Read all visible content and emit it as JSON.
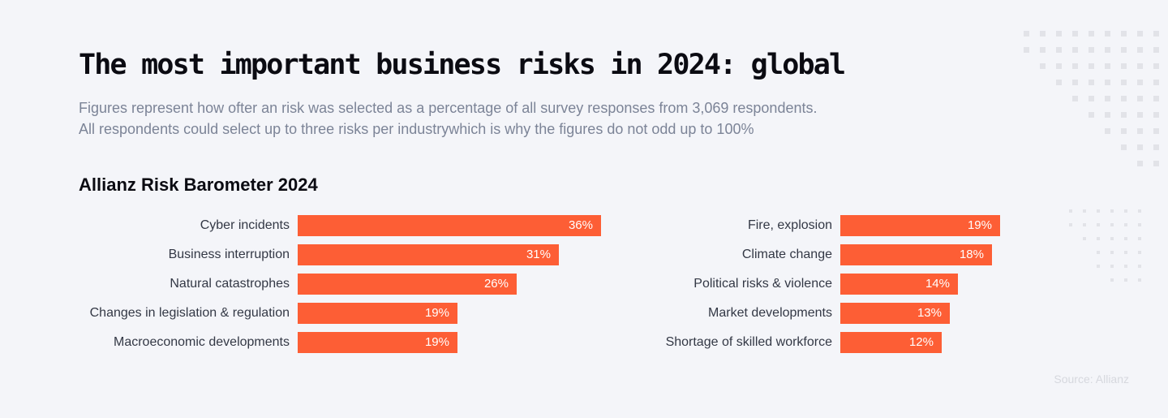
{
  "title": "The most important business risks in 2024: global",
  "subtitle": [
    "Figures represent how ofter an risk was selected as a percentage of all survey responses from 3,069 respondents.",
    "All respondents could select up to three risks per industrywhich is why the figures do not odd up to 100%"
  ],
  "source": "Source: Allianz",
  "colors": {
    "bar": "#fd5e35",
    "background": "#f4f5f9"
  },
  "chart_data": {
    "type": "bar",
    "orientation": "horizontal",
    "title": "Allianz Risk Barometer 2024",
    "unit": "%",
    "xlim": [
      0,
      36
    ],
    "groups": [
      {
        "categories": [
          "Cyber incidents",
          "Business interruption",
          "Natural catastrophes",
          "Changes in legislation & regulation",
          "Macroeconomic developments"
        ],
        "values": [
          36,
          31,
          26,
          19,
          19
        ]
      },
      {
        "categories": [
          "Fire, explosion",
          "Climate change",
          "Political risks & violence",
          "Market developments",
          "Shortage of skilled workforce"
        ],
        "values": [
          19,
          18,
          14,
          13,
          12
        ]
      }
    ]
  }
}
